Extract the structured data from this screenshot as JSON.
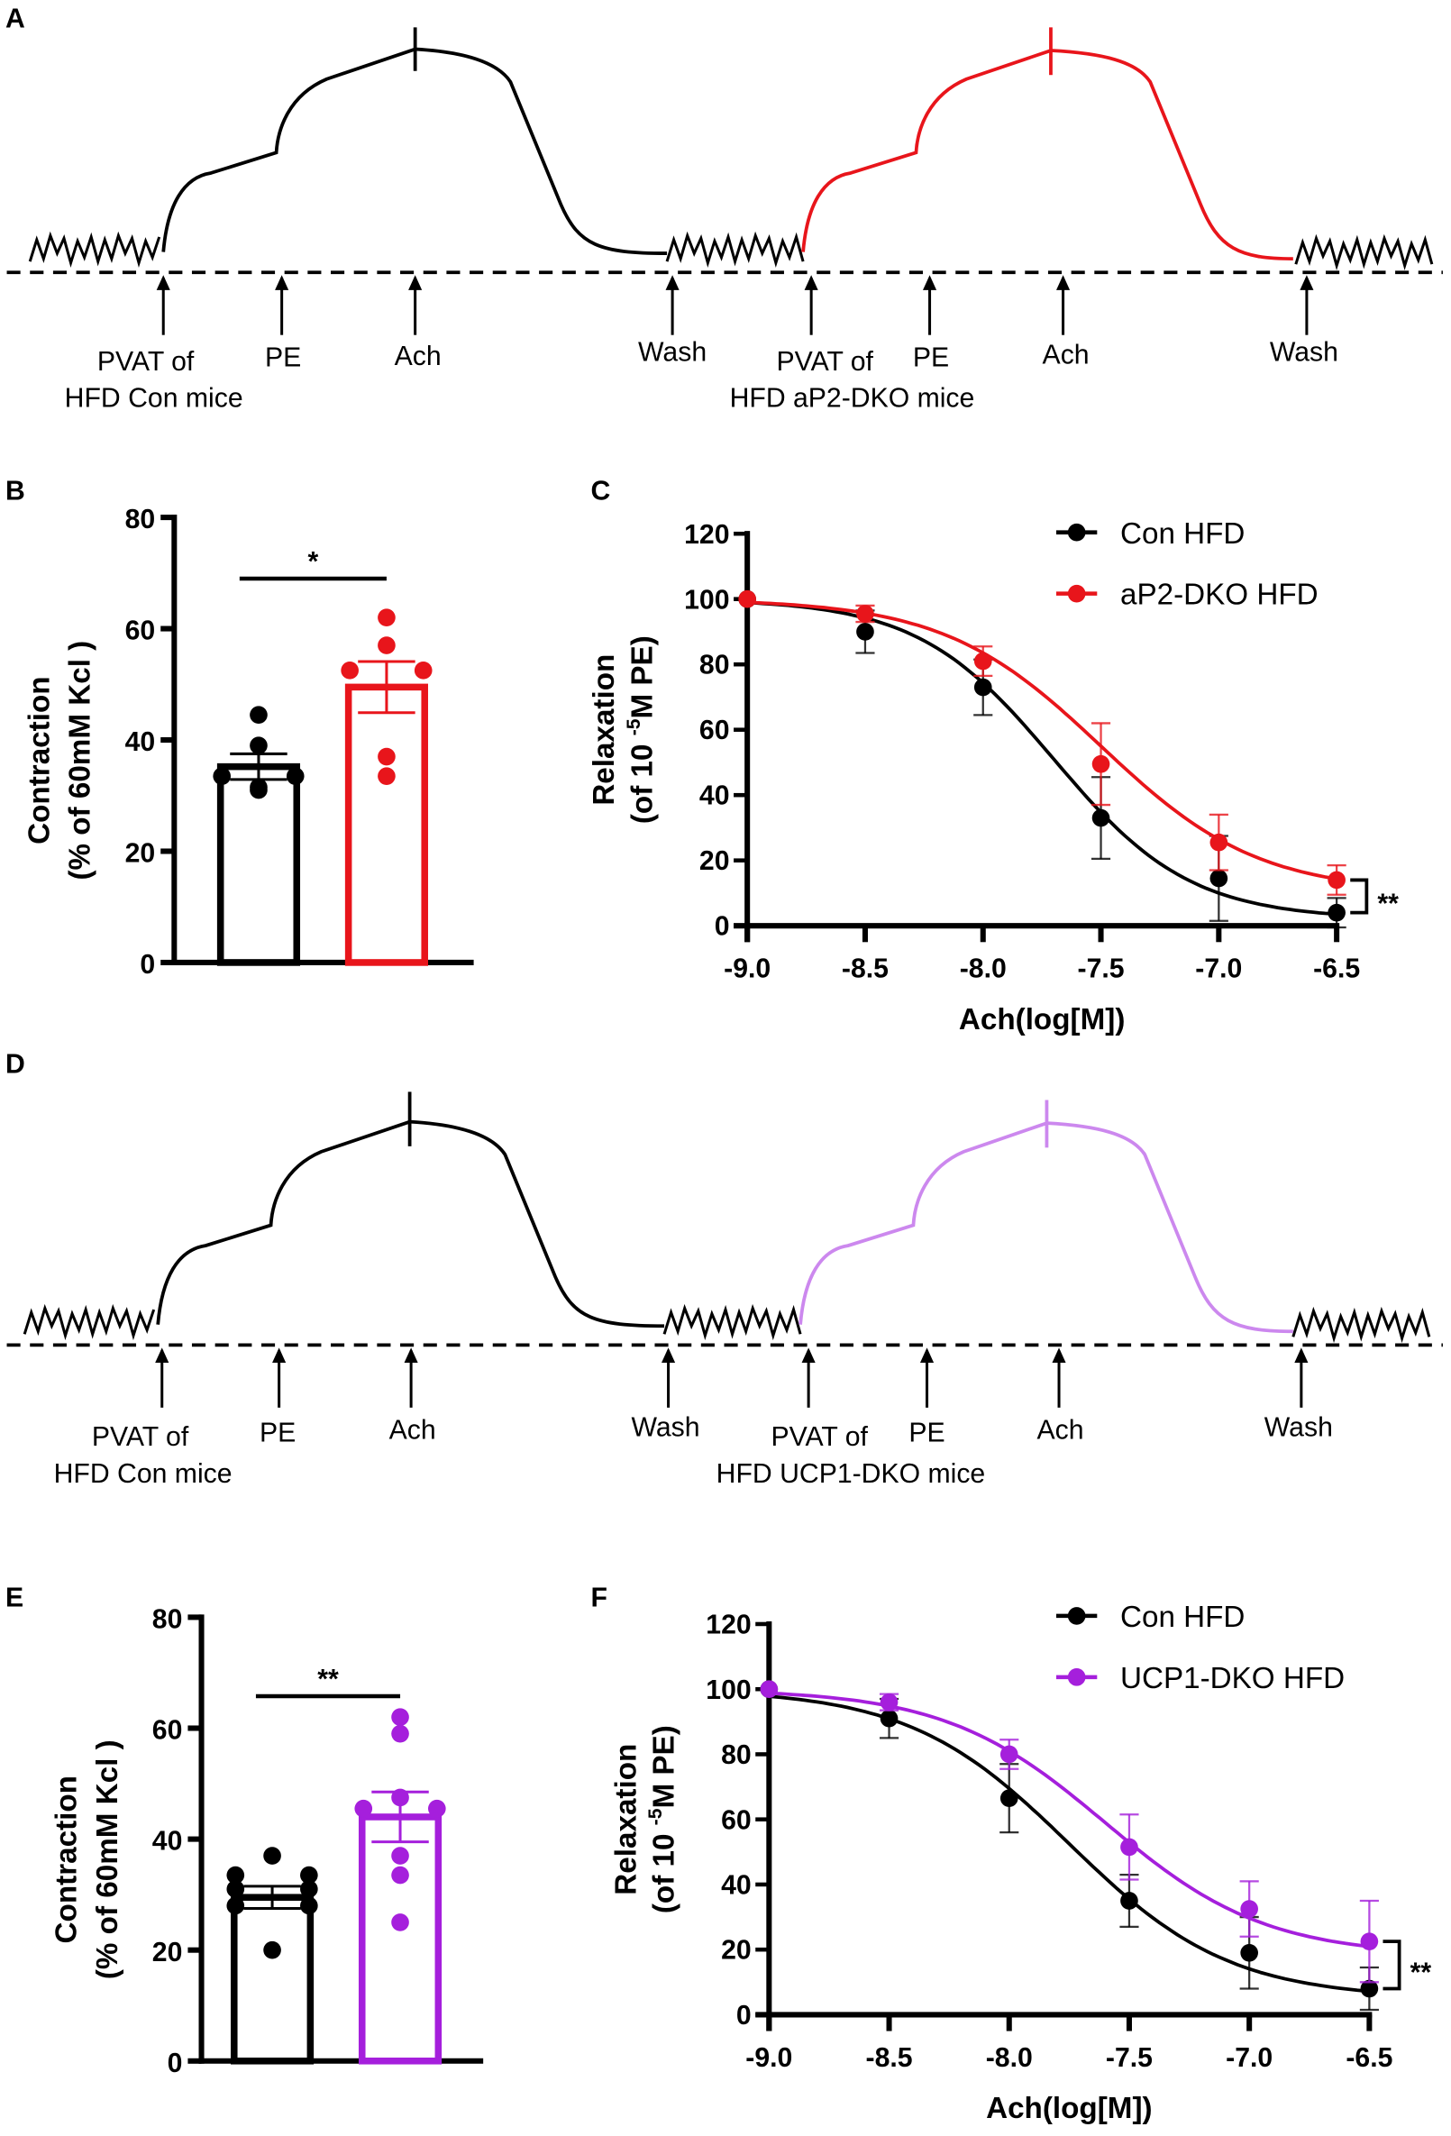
{
  "colors": {
    "black": "#000000",
    "red": "#e8151b",
    "purple": "#a51fdc",
    "purple_trace": "#cc88ee"
  },
  "panels": {
    "a": "A",
    "b": "B",
    "c": "C",
    "d": "D",
    "e": "E",
    "f": "F"
  },
  "trace_a": {
    "left": {
      "pvat1": "PVAT of",
      "pvat2": "HFD Con mice",
      "pe": "PE",
      "ach": "Ach",
      "wash": "Wash"
    },
    "right": {
      "pvat1": "PVAT of",
      "pvat2": "HFD aP2-DKO  mice",
      "pe": "PE",
      "ach": "Ach",
      "wash": "Wash"
    }
  },
  "trace_d": {
    "left": {
      "pvat1": "PVAT of",
      "pvat2": "HFD Con mice",
      "pe": "PE",
      "ach": "Ach",
      "wash": "Wash"
    },
    "right": {
      "pvat1": "PVAT of",
      "pvat2": "HFD UCP1-DKO  mice",
      "pe": "PE",
      "ach": "Ach",
      "wash": "Wash"
    }
  },
  "chart_data": [
    {
      "id": "B",
      "type": "bar",
      "ylabel": [
        "Contraction",
        "(% of 60mM Kcl )"
      ],
      "ylim": [
        0,
        80
      ],
      "yticks": [
        "0",
        "20",
        "40",
        "60",
        "80"
      ],
      "significance": "*",
      "series": [
        {
          "name": "Con HFD",
          "color": "#000000",
          "mean": 35.2,
          "sem": 2.3,
          "points": [
            44.5,
            39,
            33.5,
            33.5,
            31,
            31.5
          ]
        },
        {
          "name": "aP2-DKO HFD",
          "color": "#e8151b",
          "mean": 49.5,
          "sem": 4.6,
          "points": [
            62,
            57,
            52.5,
            52.5,
            37,
            33.5
          ]
        }
      ]
    },
    {
      "id": "C",
      "type": "line",
      "xlabel": "Ach(log[M])",
      "ylabel": {
        "line1": "Relaxation",
        "pre": "(of 10 ",
        "sup": "-5",
        "post": "M PE)"
      },
      "x": [
        -9.0,
        -8.5,
        -8.0,
        -7.5,
        -7.0,
        -6.5
      ],
      "xticks": [
        "-9.0",
        "-8.5",
        "-8.0",
        "-7.5",
        "-7.0",
        "-6.5"
      ],
      "xlim": [
        -9.0,
        -6.5
      ],
      "ylim": [
        0,
        120
      ],
      "yticks": [
        "0",
        "20",
        "40",
        "60",
        "80",
        "100",
        "120"
      ],
      "legend": "top-right",
      "significance": "**",
      "series": [
        {
          "name": "Con HFD",
          "color": "#000000",
          "values": [
            100,
            90,
            73,
            33,
            14.5,
            4
          ],
          "errors": [
            0,
            6.5,
            8.5,
            12.5,
            13,
            4.5
          ],
          "fit": {
            "bottom": 2,
            "top": 100,
            "logEC50": -7.7,
            "hill": 1.5
          }
        },
        {
          "name": "aP2-DKO HFD",
          "color": "#e8151b",
          "values": [
            100,
            95.5,
            81,
            49.5,
            25.5,
            14
          ],
          "errors": [
            0,
            2.5,
            4.5,
            12.5,
            8.5,
            4.5
          ],
          "fit": {
            "bottom": 10,
            "top": 100,
            "logEC50": -7.5,
            "hill": 1.3
          }
        }
      ]
    },
    {
      "id": "E",
      "type": "bar",
      "ylabel": [
        "Contraction",
        "(% of 60mM Kcl )"
      ],
      "ylim": [
        0,
        80
      ],
      "yticks": [
        "0",
        "20",
        "40",
        "60",
        "80"
      ],
      "significance": "**",
      "series": [
        {
          "name": "Con HFD",
          "color": "#000000",
          "mean": 29.5,
          "sem": 2,
          "points": [
            37,
            33.5,
            33.5,
            31,
            31,
            28,
            28,
            20
          ]
        },
        {
          "name": "UCP1-DKO HFD",
          "color": "#a51fdc",
          "mean": 44,
          "sem": 4.5,
          "points": [
            62,
            59,
            47.5,
            45.5,
            45.5,
            37,
            33.5,
            25
          ]
        }
      ]
    },
    {
      "id": "F",
      "type": "line",
      "xlabel": "Ach(log[M])",
      "ylabel": {
        "line1": "Relaxation",
        "pre": "(of 10 ",
        "sup": "-5",
        "post": "M PE)"
      },
      "x": [
        -9.0,
        -8.5,
        -8.0,
        -7.5,
        -7.0,
        -6.5
      ],
      "xticks": [
        "-9.0",
        "-8.5",
        "-8.0",
        "-7.5",
        "-7.0",
        "-6.5"
      ],
      "xlim": [
        -9.0,
        -6.5
      ],
      "ylim": [
        0,
        120
      ],
      "yticks": [
        "0",
        "20",
        "40",
        "60",
        "80",
        "100",
        "120"
      ],
      "legend": "top-right",
      "significance": "**",
      "series": [
        {
          "name": "Con HFD",
          "color": "#000000",
          "values": [
            100,
            91,
            66.5,
            35,
            19,
            8
          ],
          "errors": [
            0,
            6,
            10.5,
            8,
            11,
            6.5
          ],
          "fit": {
            "bottom": 5,
            "top": 100,
            "logEC50": -7.75,
            "hill": 1.3
          }
        },
        {
          "name": "UCP1-DKO HFD",
          "color": "#a51fdc",
          "values": [
            100,
            96,
            80,
            51.5,
            32.5,
            22.5
          ],
          "errors": [
            0,
            2.5,
            4.5,
            10,
            8.5,
            12.5
          ],
          "fit": {
            "bottom": 18,
            "top": 100,
            "logEC50": -7.6,
            "hill": 1.3
          }
        }
      ]
    }
  ]
}
